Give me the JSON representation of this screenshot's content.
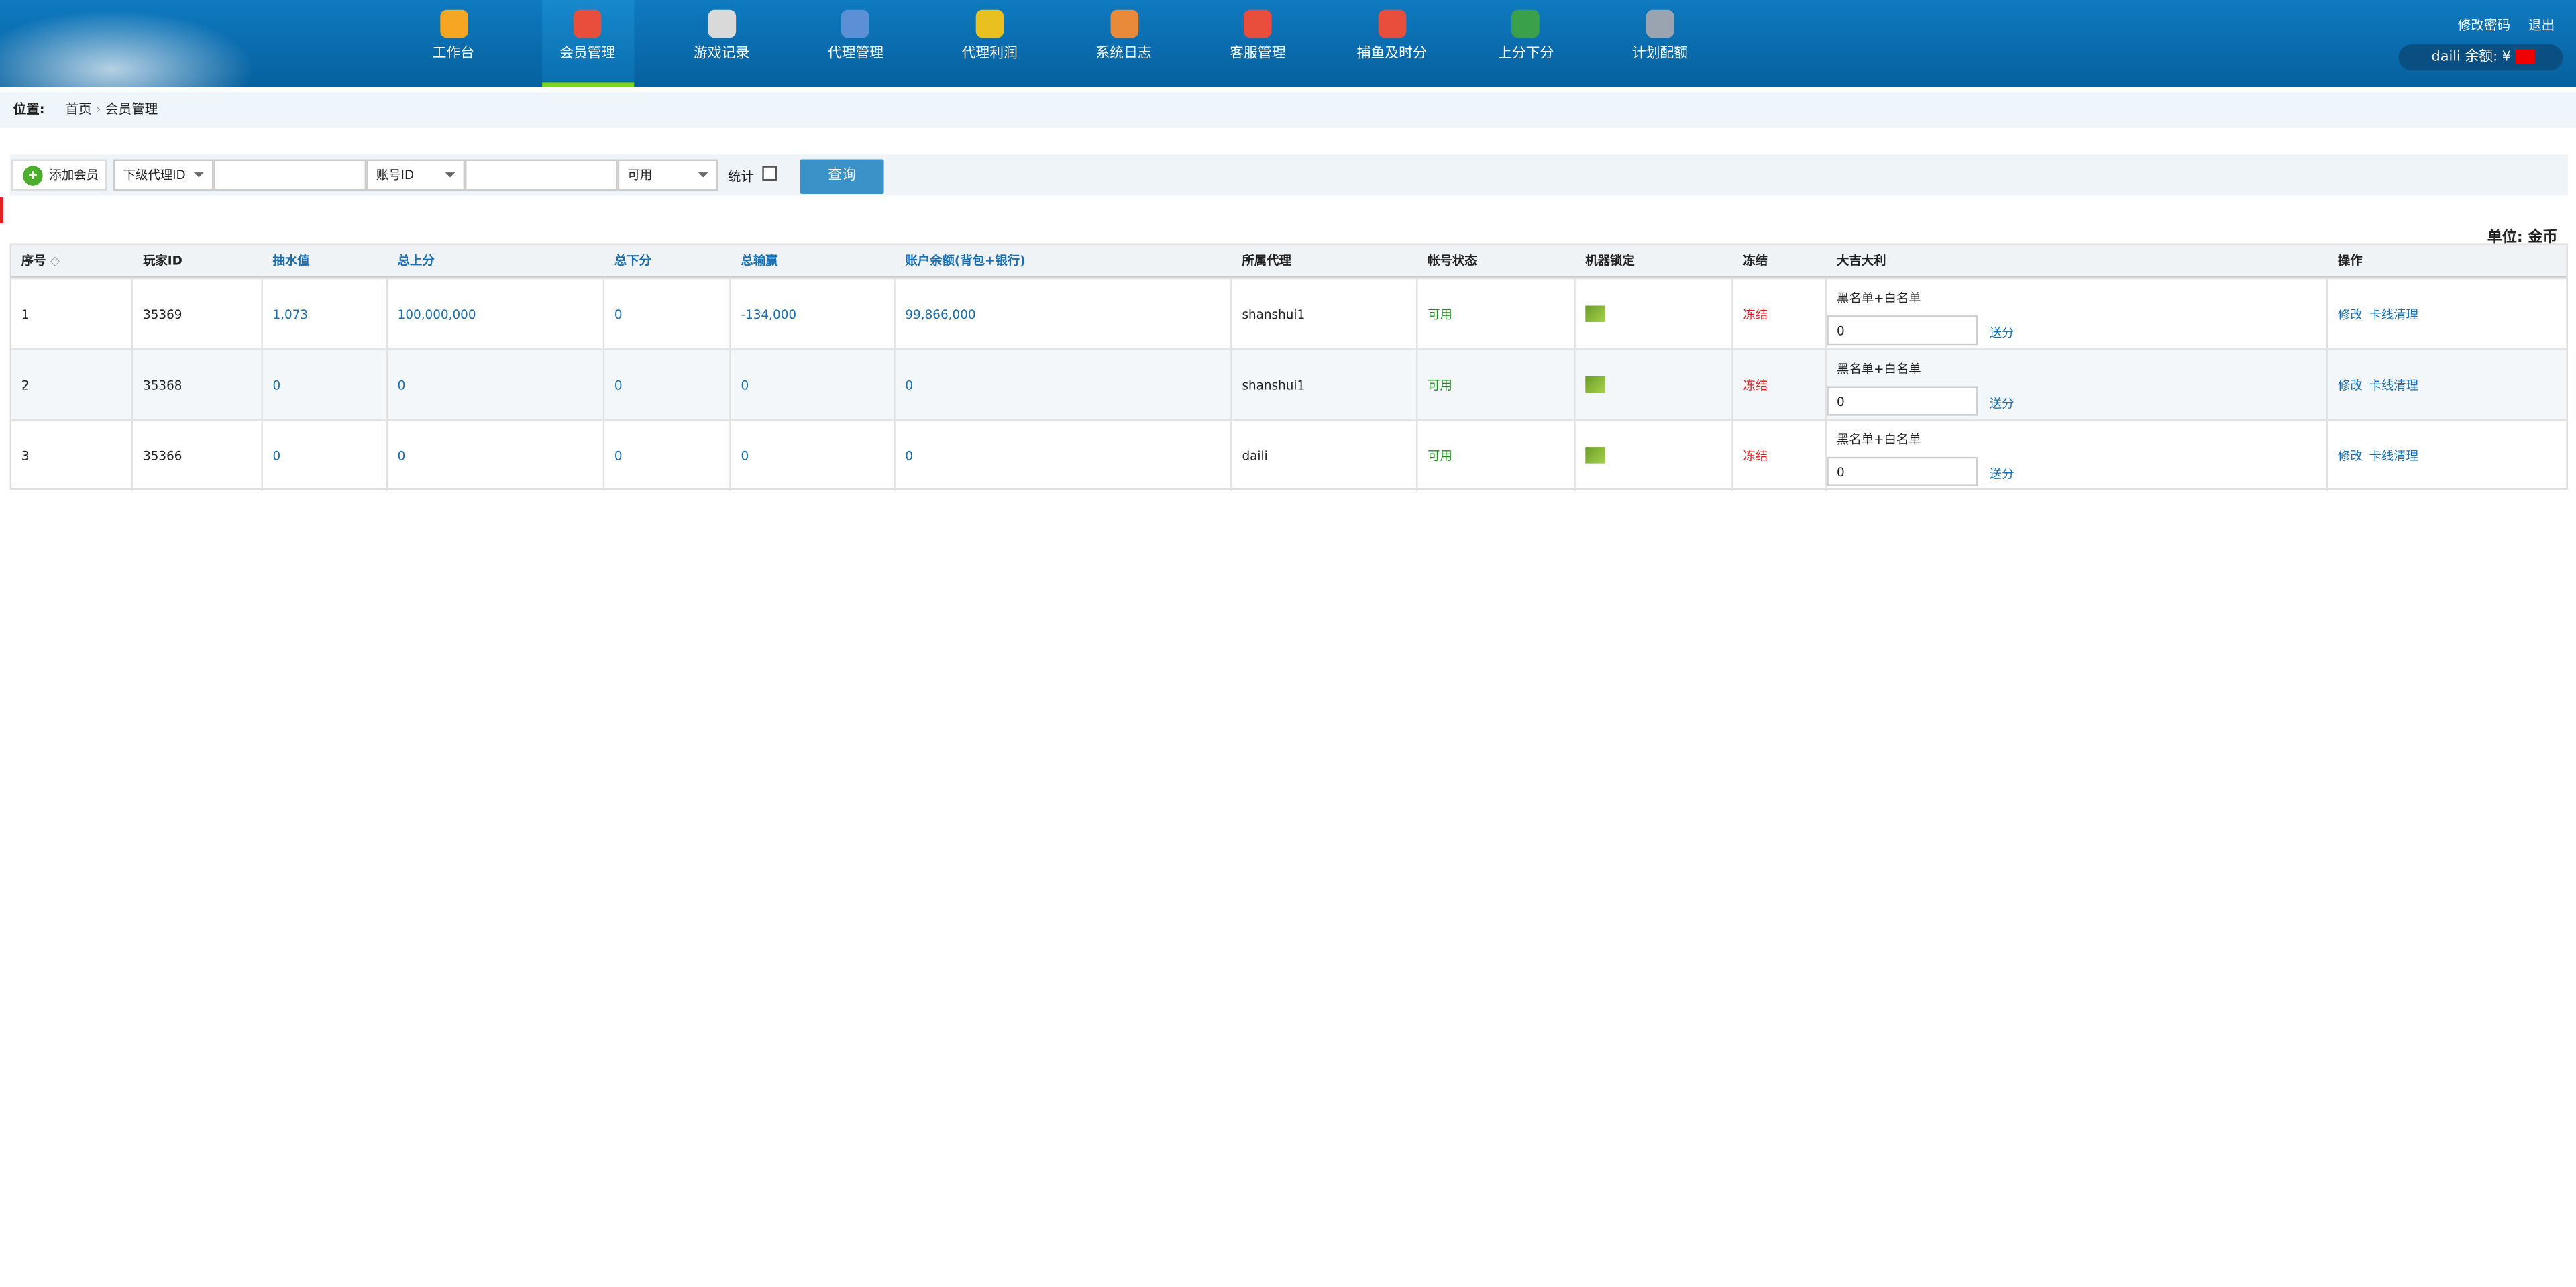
{
  "nav": {
    "items": [
      "工作台",
      "会员管理",
      "游戏记录",
      "代理管理",
      "代理利润",
      "系统日志",
      "客服管理",
      "捕鱼及时分",
      "上分下分",
      "计划配额"
    ],
    "active": 1
  },
  "header": {
    "links": [
      "修改密码",
      "退出"
    ],
    "user": "daili",
    "balance_label": "余额:",
    "currency": "¥"
  },
  "breadcrumb": {
    "label": "位置:",
    "items": [
      "首页",
      "会员管理"
    ]
  },
  "toolbar": {
    "add": "添加会员",
    "agent_select": "下级代理ID",
    "account_select": "账号ID",
    "status_select": "可用",
    "stats": "统计",
    "query": "查询"
  },
  "unit": "单位: 金币",
  "table": {
    "headers": [
      "序号",
      "玩家ID",
      "抽水值",
      "总上分",
      "总下分",
      "总输赢",
      "账户余额(背包+银行)",
      "所属代理",
      "帐号状态",
      "机器锁定",
      "冻结",
      "大吉大利",
      "操作"
    ],
    "rows": [
      {
        "no": "1",
        "id": "35369",
        "rake": "1,073",
        "total_in": "100,000,000",
        "total_out": "0",
        "net": "-134,000",
        "balance": "99,866,000",
        "agent": "shanshui1",
        "status": "可用",
        "freeze": "冻结",
        "luck_label": "黑名单+白名单",
        "luck_input": "0",
        "luck_action": "送分",
        "edit": "修改",
        "clear": "卡线清理"
      },
      {
        "no": "2",
        "id": "35368",
        "rake": "0",
        "total_in": "0",
        "total_out": "0",
        "net": "0",
        "balance": "0",
        "agent": "shanshui1",
        "status": "可用",
        "freeze": "冻结",
        "luck_label": "黑名单+白名单",
        "luck_input": "0",
        "luck_action": "送分",
        "edit": "修改",
        "clear": "卡线清理"
      },
      {
        "no": "3",
        "id": "35366",
        "rake": "0",
        "total_in": "0",
        "total_out": "0",
        "net": "0",
        "balance": "0",
        "agent": "daili",
        "status": "可用",
        "freeze": "冻结",
        "luck_label": "黑名单+白名单",
        "luck_input": "0",
        "luck_action": "送分",
        "edit": "修改",
        "clear": "卡线清理"
      }
    ]
  }
}
